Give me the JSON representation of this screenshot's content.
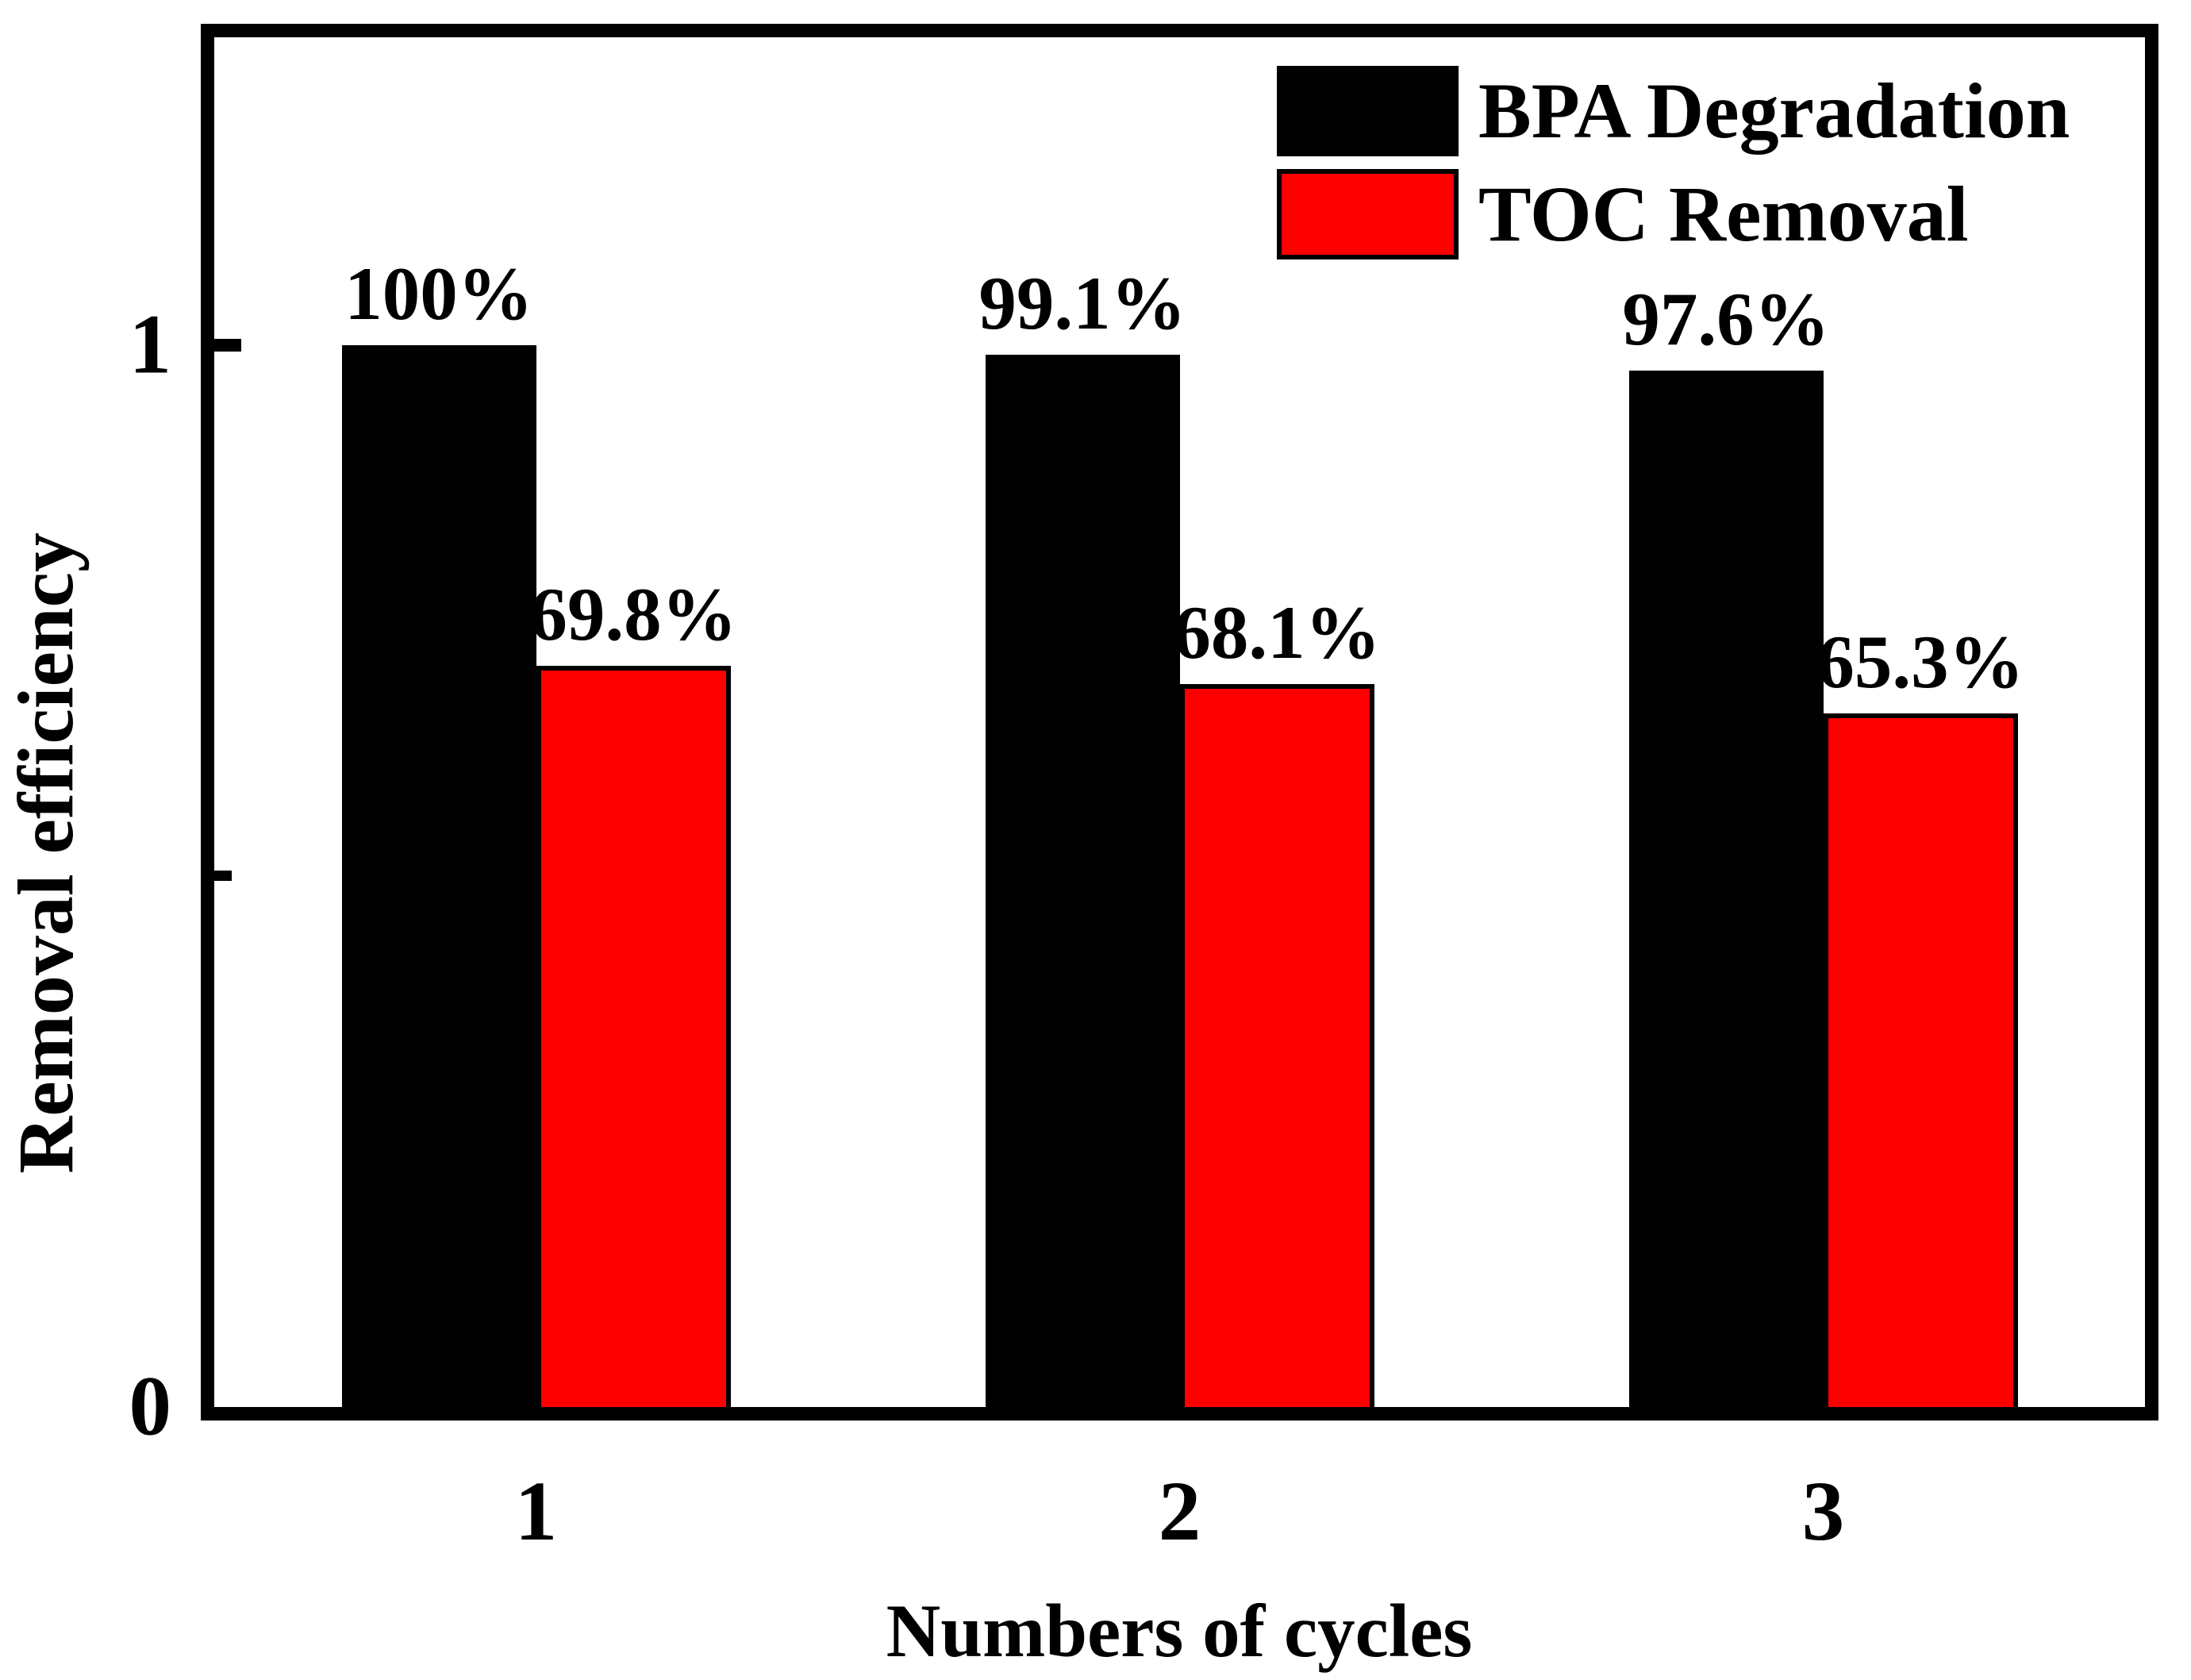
{
  "chart_data": {
    "type": "bar",
    "title": "",
    "xlabel": "Numbers of cycles",
    "ylabel": "Removal efficiency",
    "categories": [
      "1",
      "2",
      "3"
    ],
    "series": [
      {
        "name": "BPA Degradation",
        "color": "#000000",
        "values": [
          1.0,
          0.991,
          0.976
        ],
        "value_labels": [
          "100%",
          "99.1%",
          "97.6%"
        ]
      },
      {
        "name": "TOC Removal",
        "color": "#ff0000",
        "values": [
          0.698,
          0.681,
          0.653
        ],
        "value_labels": [
          "69.8%",
          "68.1%",
          "65.3%"
        ]
      }
    ],
    "ylim": [
      0,
      1.29
    ],
    "y_major_ticks": [
      {
        "value": 0,
        "label": "0"
      },
      {
        "value": 1,
        "label": "1"
      }
    ],
    "y_minor_ticks": [
      0.5
    ],
    "grid": false,
    "legend_position": "top-right",
    "bar_outline_color": "#000000"
  }
}
